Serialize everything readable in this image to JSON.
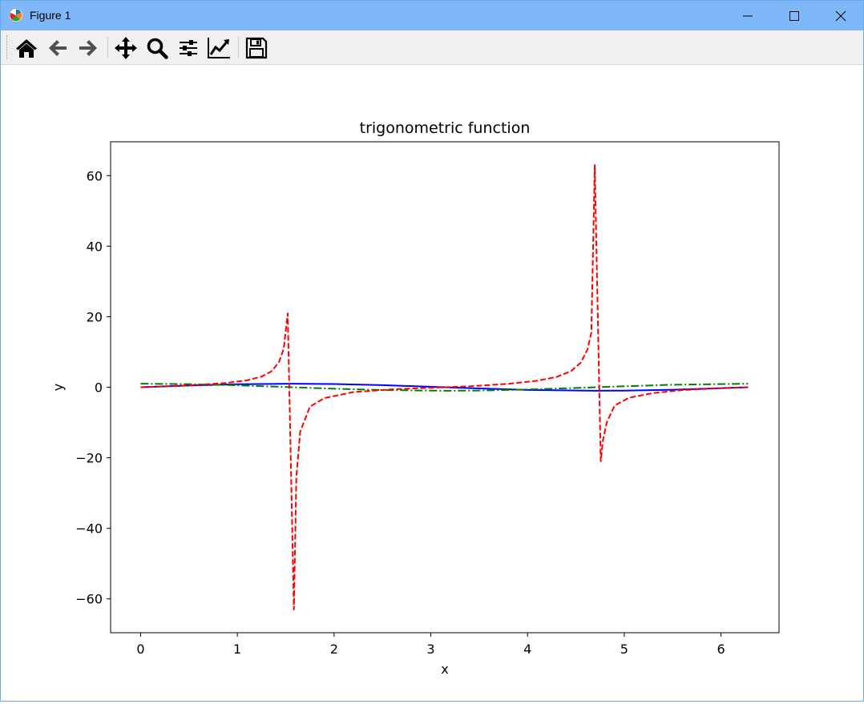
{
  "window": {
    "title": "Figure 1",
    "title_bar_color": "#7fb8f8"
  },
  "toolbar": {
    "buttons": [
      {
        "name": "home",
        "icon": "home-icon"
      },
      {
        "name": "back",
        "icon": "arrow-left-icon"
      },
      {
        "name": "forward",
        "icon": "arrow-right-icon"
      },
      {
        "name": "pan",
        "icon": "move-icon"
      },
      {
        "name": "zoom",
        "icon": "search-icon"
      },
      {
        "name": "subplots",
        "icon": "sliders-icon"
      },
      {
        "name": "customize",
        "icon": "chart-line-icon"
      },
      {
        "name": "save",
        "icon": "save-icon"
      }
    ]
  },
  "chart_data": {
    "type": "line",
    "title": "trigonometric function",
    "xlabel": "x",
    "ylabel": "y",
    "xlim": [
      -0.31,
      6.6
    ],
    "ylim": [
      -69.6,
      69.6
    ],
    "xticks": [
      0,
      1,
      2,
      3,
      4,
      5,
      6
    ],
    "yticks": [
      -60,
      -40,
      -20,
      0,
      20,
      40,
      60
    ],
    "ytick_labels": [
      "−60",
      "−40",
      "−20",
      "0",
      "20",
      "40",
      "60"
    ],
    "grid": false,
    "series": [
      {
        "function": "sin",
        "color": "#0000ff",
        "linestyle": "solid",
        "x": [
          0,
          0.5,
          1.0,
          1.57,
          2.0,
          2.5,
          3.14,
          3.5,
          4.0,
          4.71,
          5.0,
          5.5,
          6.28
        ],
        "y": [
          0,
          0.48,
          0.84,
          1.0,
          0.91,
          0.6,
          0,
          -0.35,
          -0.76,
          -1.0,
          -0.96,
          -0.71,
          0
        ]
      },
      {
        "function": "cos",
        "color": "#008000",
        "linestyle": "dashdot",
        "x": [
          0,
          0.5,
          1.0,
          1.57,
          2.0,
          2.5,
          3.14,
          3.5,
          4.0,
          4.71,
          5.0,
          5.5,
          6.28
        ],
        "y": [
          1.0,
          0.88,
          0.54,
          0,
          -0.42,
          -0.8,
          -1.0,
          -0.94,
          -0.65,
          0,
          0.28,
          0.71,
          1.0
        ]
      },
      {
        "function": "tan",
        "color": "#ff0000",
        "linestyle": "dashed",
        "x": [
          0,
          0.3,
          0.6,
          0.9,
          1.1,
          1.25,
          1.35,
          1.43,
          1.48,
          1.521,
          1.585,
          1.61,
          1.65,
          1.75,
          1.9,
          2.2,
          2.6,
          3.0,
          3.14,
          3.4,
          3.8,
          4.1,
          4.3,
          4.45,
          4.55,
          4.62,
          4.66,
          4.695,
          4.757,
          4.78,
          4.82,
          4.9,
          5.05,
          5.3,
          5.6,
          5.9,
          6.28
        ],
        "y": [
          0,
          0.31,
          0.68,
          1.26,
          1.96,
          3.01,
          4.46,
          7.07,
          10.98,
          20.95,
          -63.0,
          -25.5,
          -12.6,
          -5.52,
          -3.07,
          -1.37,
          -0.6,
          -0.14,
          0,
          0.26,
          0.97,
          1.84,
          2.92,
          4.57,
          6.97,
          10.72,
          15.54,
          63.0,
          -21.0,
          -15.0,
          -9.9,
          -5.2,
          -2.98,
          -1.64,
          -0.81,
          -0.39,
          0
        ]
      }
    ]
  }
}
